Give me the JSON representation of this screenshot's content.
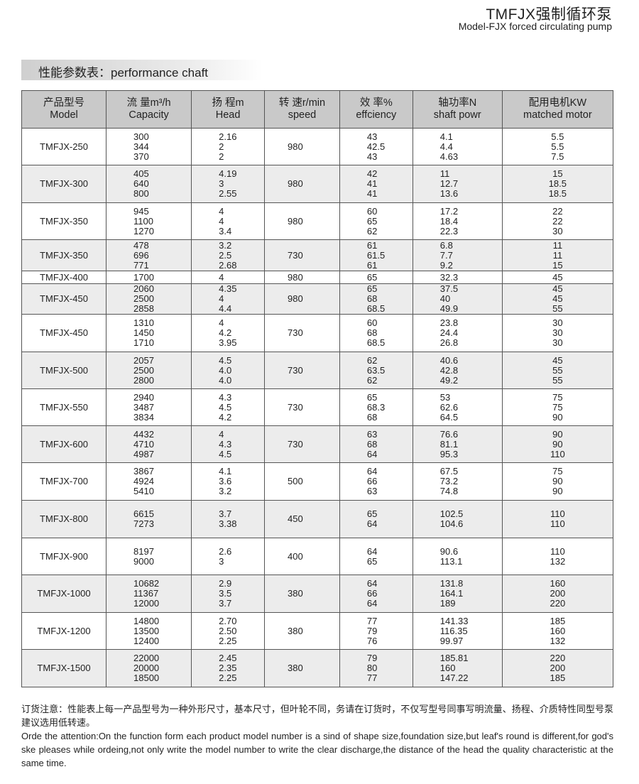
{
  "header": {
    "title": "TMFJX强制循环泵",
    "subtitle": "Model-FJX forced circulating pump"
  },
  "section_title": "性能参数表：performance chaft",
  "columns": [
    {
      "cn": "产品型号",
      "en": "Model"
    },
    {
      "cn": "流 量m³/h",
      "en": "Capacity"
    },
    {
      "cn": "扬 程m",
      "en": "Head"
    },
    {
      "cn": "转 速r/min",
      "en": "speed"
    },
    {
      "cn": "效 率%",
      "en": "effciency"
    },
    {
      "cn": "轴功率N",
      "en": "shaft powr"
    },
    {
      "cn": "配用电机KW",
      "en": "matched motor"
    }
  ],
  "rows": [
    {
      "model": "TMFJX-250",
      "capacity": [
        "300",
        "344",
        "370"
      ],
      "head": [
        "2.16",
        "2",
        "2"
      ],
      "speed": "980",
      "eff": [
        "43",
        "42.5",
        "43"
      ],
      "power": [
        "4.1",
        "4.4",
        "4.63"
      ],
      "motor": [
        "5.5",
        "5.5",
        "7.5"
      ]
    },
    {
      "model": "TMFJX-300",
      "capacity": [
        "405",
        "640",
        "800"
      ],
      "head": [
        "4.19",
        "3",
        "2.55"
      ],
      "speed": "980",
      "eff": [
        "42",
        "41",
        "41"
      ],
      "power": [
        "11",
        "12.7",
        "13.6"
      ],
      "motor": [
        "15",
        "18.5",
        "18.5"
      ]
    },
    {
      "model": "TMFJX-350",
      "capacity": [
        "945",
        "1100",
        "1270"
      ],
      "head": [
        "4",
        "4",
        "3.4"
      ],
      "speed": "980",
      "eff": [
        "60",
        "65",
        "62"
      ],
      "power": [
        "17.2",
        "18.4",
        "22.3"
      ],
      "motor": [
        "22",
        "22",
        "30"
      ]
    },
    {
      "model": "TMFJX-350",
      "capacity": [
        "478",
        "696",
        "771"
      ],
      "head": [
        "3.2",
        "2.5",
        "2.68"
      ],
      "speed": "730",
      "eff": [
        "61",
        "61.5",
        "61"
      ],
      "power": [
        "6.8",
        "7.7",
        "9.2"
      ],
      "motor": [
        "11",
        "11",
        "15"
      ]
    },
    {
      "model": "TMFJX-400",
      "capacity": [
        "1700"
      ],
      "head": [
        "4"
      ],
      "speed": "980",
      "eff": [
        "65"
      ],
      "power": [
        "32.3"
      ],
      "motor": [
        "45"
      ]
    },
    {
      "model": "TMFJX-450",
      "capacity": [
        "2060",
        "2500",
        "2858"
      ],
      "head": [
        "4.35",
        "4",
        "4.4"
      ],
      "speed": "980",
      "eff": [
        "65",
        "68",
        "68.5"
      ],
      "power": [
        "37.5",
        "40",
        "49.9"
      ],
      "motor": [
        "45",
        "45",
        "55"
      ]
    },
    {
      "model": "TMFJX-450",
      "capacity": [
        "1310",
        "1450",
        "1710"
      ],
      "head": [
        "4",
        "4.2",
        "3.95"
      ],
      "speed": "730",
      "eff": [
        "60",
        "68",
        "68.5"
      ],
      "power": [
        "23.8",
        "24.4",
        "26.8"
      ],
      "motor": [
        "30",
        "30",
        "30"
      ]
    },
    {
      "model": "TMFJX-500",
      "capacity": [
        "2057",
        "2500",
        "2800"
      ],
      "head": [
        "4.5",
        "4.0",
        "4.0"
      ],
      "speed": "730",
      "eff": [
        "62",
        "63.5",
        "62"
      ],
      "power": [
        "40.6",
        "42.8",
        "49.2"
      ],
      "motor": [
        "45",
        "55",
        "55"
      ]
    },
    {
      "model": "TMFJX-550",
      "capacity": [
        "2940",
        "3487",
        "3834"
      ],
      "head": [
        "4.3",
        "4.5",
        "4.2"
      ],
      "speed": "730",
      "eff": [
        "65",
        "68.3",
        "68"
      ],
      "power": [
        "53",
        "62.6",
        "64.5"
      ],
      "motor": [
        "75",
        "75",
        "90"
      ]
    },
    {
      "model": "TMFJX-600",
      "capacity": [
        "4432",
        "4710",
        "4987"
      ],
      "head": [
        "4",
        "4.3",
        "4.5"
      ],
      "speed": "730",
      "eff": [
        "63",
        "68",
        "64"
      ],
      "power": [
        "76.6",
        "81.1",
        "95.3"
      ],
      "motor": [
        "90",
        "90",
        "110"
      ]
    },
    {
      "model": "TMFJX-700",
      "capacity": [
        "3867",
        "4924",
        "5410"
      ],
      "head": [
        "4.1",
        "3.6",
        "3.2"
      ],
      "speed": "500",
      "eff": [
        "64",
        "66",
        "63"
      ],
      "power": [
        "67.5",
        "73.2",
        "74.8"
      ],
      "motor": [
        "75",
        "90",
        "90"
      ]
    },
    {
      "model": "TMFJX-800",
      "capacity": [
        "6615",
        "7273"
      ],
      "head": [
        "3.7",
        "3.38"
      ],
      "speed": "450",
      "eff": [
        "65",
        "64"
      ],
      "power": [
        "102.5",
        "104.6"
      ],
      "motor": [
        "110",
        "110"
      ]
    },
    {
      "model": "TMFJX-900",
      "capacity": [
        "8197",
        "9000"
      ],
      "head": [
        "2.6",
        "3"
      ],
      "speed": "400",
      "eff": [
        "64",
        "65"
      ],
      "power": [
        "90.6",
        "113.1"
      ],
      "motor": [
        "110",
        "132"
      ]
    },
    {
      "model": "TMFJX-1000",
      "capacity": [
        "10682",
        "11367",
        "12000"
      ],
      "head": [
        "2.9",
        "3.5",
        "3.7"
      ],
      "speed": "380",
      "eff": [
        "64",
        "66",
        "64"
      ],
      "power": [
        "131.8",
        "164.1",
        "189"
      ],
      "motor": [
        "160",
        "200",
        "220"
      ]
    },
    {
      "model": "TMFJX-1200",
      "capacity": [
        "14800",
        "13500",
        "12400"
      ],
      "head": [
        "2.70",
        "2.50",
        "2.25"
      ],
      "speed": "380",
      "eff": [
        "77",
        "79",
        "76"
      ],
      "power": [
        "141.33",
        "116.35",
        "99.97"
      ],
      "motor": [
        "185",
        "160",
        "132"
      ]
    },
    {
      "model": "TMFJX-1500",
      "capacity": [
        "22000",
        "20000",
        "18500"
      ],
      "head": [
        "2.45",
        "2.35",
        "2.25"
      ],
      "speed": "380",
      "eff": [
        "79",
        "80",
        "77"
      ],
      "power": [
        "185.81",
        "160",
        "147.22"
      ],
      "motor": [
        "220",
        "200",
        "185"
      ]
    }
  ],
  "footer": {
    "cn": "订货注意：性能表上每一产品型号为一种外形尺寸，基本尺寸，但叶轮不同，务请在订货时，不仅写型号同事写明流量、扬程、介质特性同型号泵建议选用低转速。",
    "en": "Orde the attention:On the function form each product model number is a sind of shape size,foundation size,but leaf's round is different,for god's ske pleases while ordeing,not only write the model number to write the clear discharge,the distance of the head the quality characteristic at the same time."
  }
}
